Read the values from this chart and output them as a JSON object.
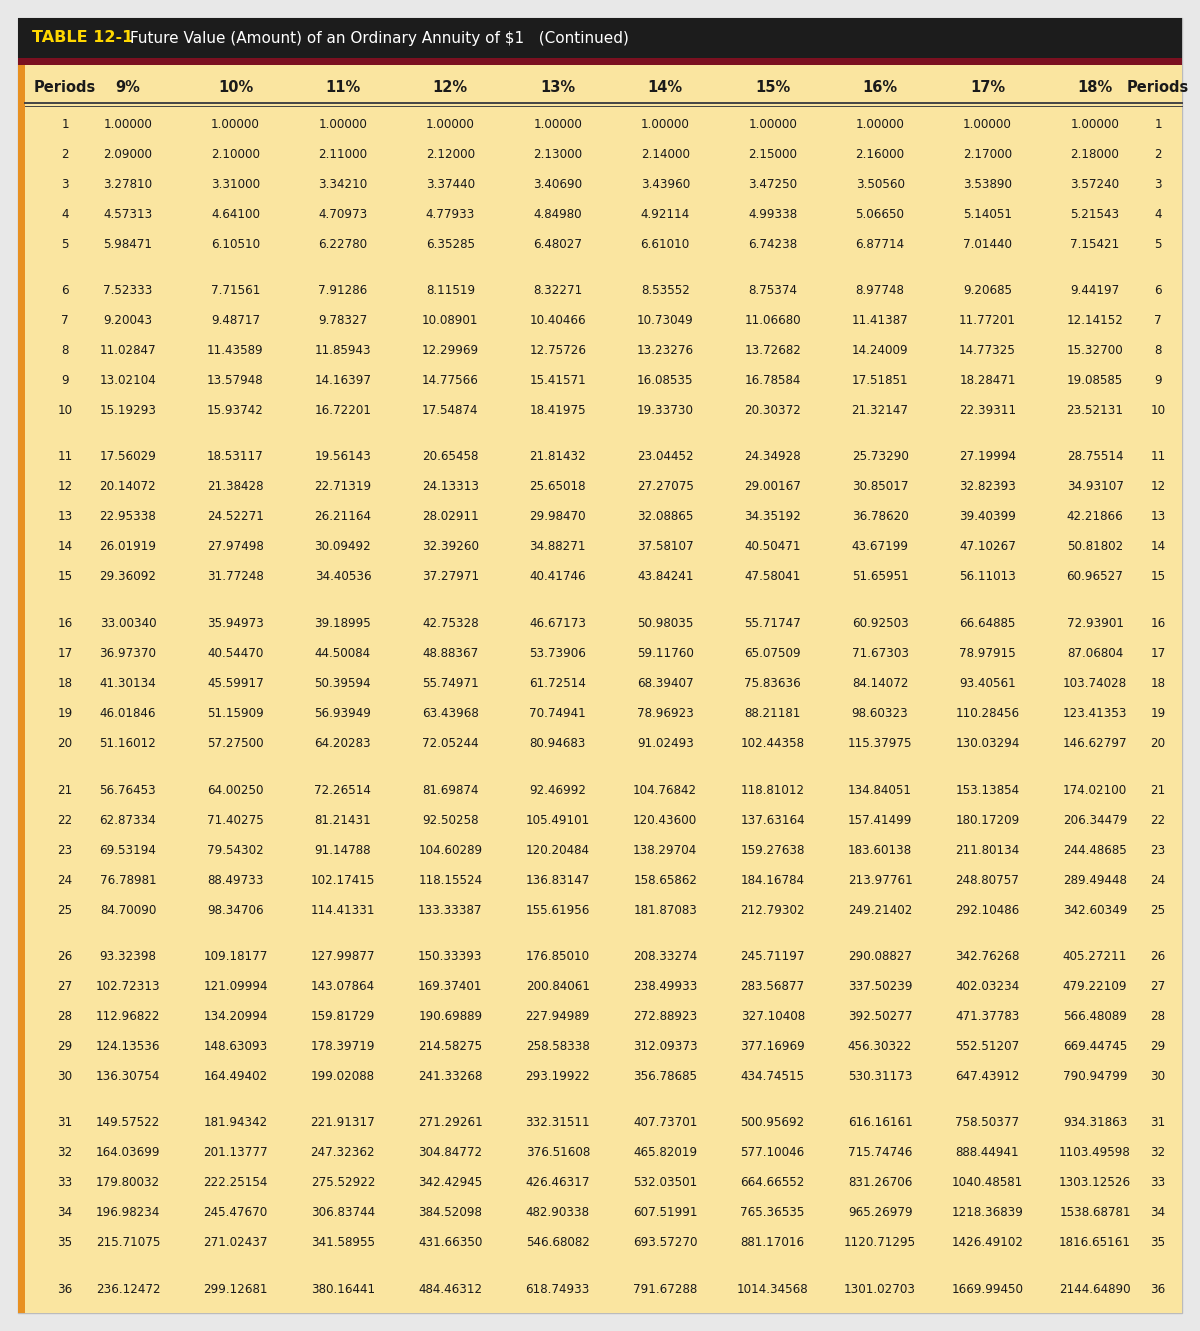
{
  "title_tag": "TABLE 12-1",
  "title_text": "Future Value (Amount) of an Ordinary Annuity of $1   (Continued)",
  "header_bg": "#1C1C1C",
  "header_tag_color": "#FFD700",
  "dark_red_bar": "#7B1020",
  "table_bg": "#FAE5A0",
  "outer_bg": "#E8E8E8",
  "left_bar_color": "#E89020",
  "border_color": "#BBBBBB",
  "columns": [
    "Periods",
    "9%",
    "10%",
    "11%",
    "12%",
    "13%",
    "14%",
    "15%",
    "16%",
    "17%",
    "18%",
    "Periods"
  ],
  "data": [
    [
      1,
      "1.00000",
      "1.00000",
      "1.00000",
      "1.00000",
      "1.00000",
      "1.00000",
      "1.00000",
      "1.00000",
      "1.00000",
      "1.00000",
      1
    ],
    [
      2,
      "2.09000",
      "2.10000",
      "2.11000",
      "2.12000",
      "2.13000",
      "2.14000",
      "2.15000",
      "2.16000",
      "2.17000",
      "2.18000",
      2
    ],
    [
      3,
      "3.27810",
      "3.31000",
      "3.34210",
      "3.37440",
      "3.40690",
      "3.43960",
      "3.47250",
      "3.50560",
      "3.53890",
      "3.57240",
      3
    ],
    [
      4,
      "4.57313",
      "4.64100",
      "4.70973",
      "4.77933",
      "4.84980",
      "4.92114",
      "4.99338",
      "5.06650",
      "5.14051",
      "5.21543",
      4
    ],
    [
      5,
      "5.98471",
      "6.10510",
      "6.22780",
      "6.35285",
      "6.48027",
      "6.61010",
      "6.74238",
      "6.87714",
      "7.01440",
      "7.15421",
      5
    ],
    [
      6,
      "7.52333",
      "7.71561",
      "7.91286",
      "8.11519",
      "8.32271",
      "8.53552",
      "8.75374",
      "8.97748",
      "9.20685",
      "9.44197",
      6
    ],
    [
      7,
      "9.20043",
      "9.48717",
      "9.78327",
      "10.08901",
      "10.40466",
      "10.73049",
      "11.06680",
      "11.41387",
      "11.77201",
      "12.14152",
      7
    ],
    [
      8,
      "11.02847",
      "11.43589",
      "11.85943",
      "12.29969",
      "12.75726",
      "13.23276",
      "13.72682",
      "14.24009",
      "14.77325",
      "15.32700",
      8
    ],
    [
      9,
      "13.02104",
      "13.57948",
      "14.16397",
      "14.77566",
      "15.41571",
      "16.08535",
      "16.78584",
      "17.51851",
      "18.28471",
      "19.08585",
      9
    ],
    [
      10,
      "15.19293",
      "15.93742",
      "16.72201",
      "17.54874",
      "18.41975",
      "19.33730",
      "20.30372",
      "21.32147",
      "22.39311",
      "23.52131",
      10
    ],
    [
      11,
      "17.56029",
      "18.53117",
      "19.56143",
      "20.65458",
      "21.81432",
      "23.04452",
      "24.34928",
      "25.73290",
      "27.19994",
      "28.75514",
      11
    ],
    [
      12,
      "20.14072",
      "21.38428",
      "22.71319",
      "24.13313",
      "25.65018",
      "27.27075",
      "29.00167",
      "30.85017",
      "32.82393",
      "34.93107",
      12
    ],
    [
      13,
      "22.95338",
      "24.52271",
      "26.21164",
      "28.02911",
      "29.98470",
      "32.08865",
      "34.35192",
      "36.78620",
      "39.40399",
      "42.21866",
      13
    ],
    [
      14,
      "26.01919",
      "27.97498",
      "30.09492",
      "32.39260",
      "34.88271",
      "37.58107",
      "40.50471",
      "43.67199",
      "47.10267",
      "50.81802",
      14
    ],
    [
      15,
      "29.36092",
      "31.77248",
      "34.40536",
      "37.27971",
      "40.41746",
      "43.84241",
      "47.58041",
      "51.65951",
      "56.11013",
      "60.96527",
      15
    ],
    [
      16,
      "33.00340",
      "35.94973",
      "39.18995",
      "42.75328",
      "46.67173",
      "50.98035",
      "55.71747",
      "60.92503",
      "66.64885",
      "72.93901",
      16
    ],
    [
      17,
      "36.97370",
      "40.54470",
      "44.50084",
      "48.88367",
      "53.73906",
      "59.11760",
      "65.07509",
      "71.67303",
      "78.97915",
      "87.06804",
      17
    ],
    [
      18,
      "41.30134",
      "45.59917",
      "50.39594",
      "55.74971",
      "61.72514",
      "68.39407",
      "75.83636",
      "84.14072",
      "93.40561",
      "103.74028",
      18
    ],
    [
      19,
      "46.01846",
      "51.15909",
      "56.93949",
      "63.43968",
      "70.74941",
      "78.96923",
      "88.21181",
      "98.60323",
      "110.28456",
      "123.41353",
      19
    ],
    [
      20,
      "51.16012",
      "57.27500",
      "64.20283",
      "72.05244",
      "80.94683",
      "91.02493",
      "102.44358",
      "115.37975",
      "130.03294",
      "146.62797",
      20
    ],
    [
      21,
      "56.76453",
      "64.00250",
      "72.26514",
      "81.69874",
      "92.46992",
      "104.76842",
      "118.81012",
      "134.84051",
      "153.13854",
      "174.02100",
      21
    ],
    [
      22,
      "62.87334",
      "71.40275",
      "81.21431",
      "92.50258",
      "105.49101",
      "120.43600",
      "137.63164",
      "157.41499",
      "180.17209",
      "206.34479",
      22
    ],
    [
      23,
      "69.53194",
      "79.54302",
      "91.14788",
      "104.60289",
      "120.20484",
      "138.29704",
      "159.27638",
      "183.60138",
      "211.80134",
      "244.48685",
      23
    ],
    [
      24,
      "76.78981",
      "88.49733",
      "102.17415",
      "118.15524",
      "136.83147",
      "158.65862",
      "184.16784",
      "213.97761",
      "248.80757",
      "289.49448",
      24
    ],
    [
      25,
      "84.70090",
      "98.34706",
      "114.41331",
      "133.33387",
      "155.61956",
      "181.87083",
      "212.79302",
      "249.21402",
      "292.10486",
      "342.60349",
      25
    ],
    [
      26,
      "93.32398",
      "109.18177",
      "127.99877",
      "150.33393",
      "176.85010",
      "208.33274",
      "245.71197",
      "290.08827",
      "342.76268",
      "405.27211",
      26
    ],
    [
      27,
      "102.72313",
      "121.09994",
      "143.07864",
      "169.37401",
      "200.84061",
      "238.49933",
      "283.56877",
      "337.50239",
      "402.03234",
      "479.22109",
      27
    ],
    [
      28,
      "112.96822",
      "134.20994",
      "159.81729",
      "190.69889",
      "227.94989",
      "272.88923",
      "327.10408",
      "392.50277",
      "471.37783",
      "566.48089",
      28
    ],
    [
      29,
      "124.13536",
      "148.63093",
      "178.39719",
      "214.58275",
      "258.58338",
      "312.09373",
      "377.16969",
      "456.30322",
      "552.51207",
      "669.44745",
      29
    ],
    [
      30,
      "136.30754",
      "164.49402",
      "199.02088",
      "241.33268",
      "293.19922",
      "356.78685",
      "434.74515",
      "530.31173",
      "647.43912",
      "790.94799",
      30
    ],
    [
      31,
      "149.57522",
      "181.94342",
      "221.91317",
      "271.29261",
      "332.31511",
      "407.73701",
      "500.95692",
      "616.16161",
      "758.50377",
      "934.31863",
      31
    ],
    [
      32,
      "164.03699",
      "201.13777",
      "247.32362",
      "304.84772",
      "376.51608",
      "465.82019",
      "577.10046",
      "715.74746",
      "888.44941",
      "1103.49598",
      32
    ],
    [
      33,
      "179.80032",
      "222.25154",
      "275.52922",
      "342.42945",
      "426.46317",
      "532.03501",
      "664.66552",
      "831.26706",
      "1040.48581",
      "1303.12526",
      33
    ],
    [
      34,
      "196.98234",
      "245.47670",
      "306.83744",
      "384.52098",
      "482.90338",
      "607.51991",
      "765.36535",
      "965.26979",
      "1218.36839",
      "1538.68781",
      34
    ],
    [
      35,
      "215.71075",
      "271.02437",
      "341.58955",
      "431.66350",
      "546.68082",
      "693.57270",
      "881.17016",
      "1120.71295",
      "1426.49102",
      "1816.65161",
      35
    ],
    [
      36,
      "236.12472",
      "299.12681",
      "380.16441",
      "484.46312",
      "618.74933",
      "791.67288",
      "1014.34568",
      "1301.02703",
      "1669.99450",
      "2144.64890",
      36
    ]
  ],
  "group_breaks": [
    5,
    10,
    15,
    20,
    25,
    30,
    35
  ]
}
